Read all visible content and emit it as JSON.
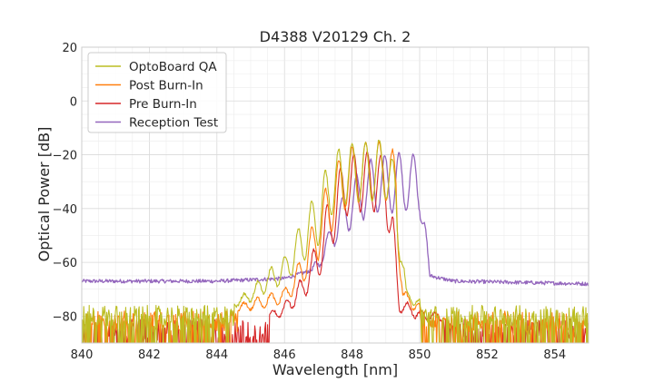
{
  "chart_data": {
    "type": "line",
    "title": "D4388 V20129 Ch. 2",
    "xlabel": "Wavelength [nm]",
    "ylabel": "Optical Power [dB]",
    "xlim": [
      840,
      855
    ],
    "ylim": [
      -90,
      20
    ],
    "xticks": [
      840,
      842,
      844,
      846,
      848,
      850,
      852,
      854
    ],
    "xtick_labels": [
      "840",
      "842",
      "844",
      "846",
      "848",
      "850",
      "852",
      "854"
    ],
    "yticks": [
      20,
      0,
      -20,
      -40,
      -60,
      -80
    ],
    "ytick_labels": [
      "20",
      "0",
      "−20",
      "−40",
      "−60",
      "−80"
    ],
    "grid": true,
    "legend_placement": "top-left",
    "series": [
      {
        "name": "OptoBoard QA",
        "color": "#bcbd22",
        "noise_floor": -80,
        "points": [
          [
            840,
            -80
          ],
          [
            843,
            -79
          ],
          [
            844.5,
            -74
          ],
          [
            845,
            -70
          ],
          [
            845.5,
            -63
          ],
          [
            846,
            -58
          ],
          [
            846.5,
            -45
          ],
          [
            847,
            -32
          ],
          [
            847.4,
            -20
          ],
          [
            847.8,
            -16
          ],
          [
            848.2,
            -15
          ],
          [
            848.6,
            -15
          ],
          [
            849,
            -14
          ],
          [
            849.3,
            -25
          ],
          [
            849.6,
            -70
          ],
          [
            850,
            -74
          ],
          [
            852,
            -79
          ],
          [
            855,
            -79
          ]
        ],
        "ripple_peaks": [
          -63,
          -58,
          -45,
          -30,
          -20,
          -16,
          -15,
          -15,
          -14
        ]
      },
      {
        "name": "Post Burn-In",
        "color": "#ff7f0e",
        "noise_floor": -82,
        "points": [
          [
            840,
            -82
          ],
          [
            844,
            -79
          ],
          [
            845,
            -74
          ],
          [
            846,
            -70
          ],
          [
            846.5,
            -58
          ],
          [
            847,
            -40
          ],
          [
            847.4,
            -26
          ],
          [
            847.8,
            -18
          ],
          [
            848.2,
            -16
          ],
          [
            848.6,
            -15
          ],
          [
            849,
            -15
          ],
          [
            849.3,
            -20
          ],
          [
            849.5,
            -70
          ],
          [
            850,
            -76
          ],
          [
            855,
            -80
          ]
        ],
        "ripple_peaks": [
          -72,
          -66,
          -58,
          -40,
          -26,
          -18,
          -16,
          -15,
          -15,
          -15
        ]
      },
      {
        "name": "Pre Burn-In",
        "color": "#d62728",
        "noise_floor": -85,
        "points": [
          [
            840,
            -85
          ],
          [
            845,
            -84
          ],
          [
            846,
            -75
          ],
          [
            846.5,
            -66
          ],
          [
            847,
            -51
          ],
          [
            847.4,
            -32
          ],
          [
            847.8,
            -21
          ],
          [
            848.2,
            -19
          ],
          [
            848.6,
            -19
          ],
          [
            849,
            -20
          ],
          [
            849.2,
            -40
          ],
          [
            849.4,
            -73
          ],
          [
            850,
            -78
          ],
          [
            855,
            -85
          ]
        ],
        "ripple_peaks": [
          -66,
          -51,
          -32,
          -21,
          -19,
          -19,
          -18,
          -20
        ]
      },
      {
        "name": "Reception Test",
        "color": "#9467bd",
        "noise_floor": -68,
        "points": [
          [
            840,
            -67
          ],
          [
            844,
            -67
          ],
          [
            846,
            -66
          ],
          [
            846.8,
            -63
          ],
          [
            847.2,
            -52
          ],
          [
            847.6,
            -38
          ],
          [
            848,
            -30
          ],
          [
            848.4,
            -23
          ],
          [
            848.8,
            -20
          ],
          [
            849.2,
            -20
          ],
          [
            849.6,
            -19
          ],
          [
            850,
            -20
          ],
          [
            850.3,
            -65
          ],
          [
            851,
            -67
          ],
          [
            855,
            -68
          ]
        ],
        "ripple_peaks": [
          -60,
          -52,
          -38,
          -30,
          -23,
          -20,
          -20,
          -19,
          -20,
          -20
        ]
      }
    ]
  }
}
